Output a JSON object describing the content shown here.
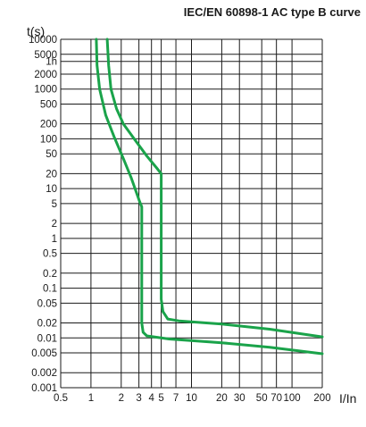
{
  "chart_data": {
    "type": "line",
    "title": "IEC/EN 60898-1 AC type B curve",
    "ylabel": "t(s)",
    "xlabel": "I/In",
    "xscale": "log",
    "yscale": "log",
    "xlim": [
      0.5,
      200
    ],
    "ylim": [
      0.001,
      10000
    ],
    "grid": true,
    "x_ticks": [
      {
        "value": 0.5,
        "label": "0.5"
      },
      {
        "value": 1,
        "label": "1"
      },
      {
        "value": 2,
        "label": "2"
      },
      {
        "value": 3,
        "label": "3"
      },
      {
        "value": 4,
        "label": "4"
      },
      {
        "value": 5,
        "label": "5"
      },
      {
        "value": 7,
        "label": "7"
      },
      {
        "value": 10,
        "label": "10"
      },
      {
        "value": 20,
        "label": "20"
      },
      {
        "value": 30,
        "label": "30"
      },
      {
        "value": 50,
        "label": "50"
      },
      {
        "value": 70,
        "label": "70"
      },
      {
        "value": 100,
        "label": "100"
      },
      {
        "value": 200,
        "label": "200"
      }
    ],
    "y_ticks": [
      {
        "value": 10000,
        "label": "10000"
      },
      {
        "value": 5000,
        "label": "5000"
      },
      {
        "value": 3600,
        "label": "1h"
      },
      {
        "value": 2000,
        "label": "2000"
      },
      {
        "value": 1000,
        "label": "1000"
      },
      {
        "value": 500,
        "label": "500"
      },
      {
        "value": 200,
        "label": "200"
      },
      {
        "value": 100,
        "label": "100"
      },
      {
        "value": 50,
        "label": "50"
      },
      {
        "value": 20,
        "label": "20"
      },
      {
        "value": 10,
        "label": "10"
      },
      {
        "value": 5,
        "label": "5"
      },
      {
        "value": 2,
        "label": "2"
      },
      {
        "value": 1,
        "label": "1"
      },
      {
        "value": 0.5,
        "label": "0.5"
      },
      {
        "value": 0.2,
        "label": "0.2"
      },
      {
        "value": 0.1,
        "label": "0.1"
      },
      {
        "value": 0.05,
        "label": "0.05"
      },
      {
        "value": 0.02,
        "label": "0.02"
      },
      {
        "value": 0.01,
        "label": "0.01"
      },
      {
        "value": 0.005,
        "label": "0.005"
      },
      {
        "value": 0.002,
        "label": "0.002"
      },
      {
        "value": 0.001,
        "label": "0.001"
      }
    ],
    "series": [
      {
        "color": "#1aa34a",
        "points": [
          [
            1.13,
            10000
          ],
          [
            1.15,
            3000
          ],
          [
            1.22,
            1000
          ],
          [
            1.4,
            300
          ],
          [
            1.7,
            110
          ],
          [
            2.1,
            40
          ],
          [
            2.5,
            17
          ],
          [
            3.05,
            5.5
          ],
          [
            3.2,
            4.3
          ],
          [
            3.2,
            0.02
          ],
          [
            3.3,
            0.013
          ],
          [
            3.6,
            0.011
          ],
          [
            6,
            0.0095
          ],
          [
            20,
            0.008
          ],
          [
            60,
            0.0065
          ],
          [
            200,
            0.0048
          ]
        ]
      },
      {
        "color": "#1aa34a",
        "points": [
          [
            1.45,
            10000
          ],
          [
            1.5,
            3000
          ],
          [
            1.58,
            1000
          ],
          [
            1.8,
            400
          ],
          [
            2.1,
            200
          ],
          [
            2.8,
            90
          ],
          [
            3.6,
            45
          ],
          [
            4.5,
            26
          ],
          [
            5,
            20
          ],
          [
            5,
            0.06
          ],
          [
            5.2,
            0.034
          ],
          [
            5.8,
            0.024
          ],
          [
            7.5,
            0.022
          ],
          [
            20,
            0.019
          ],
          [
            60,
            0.015
          ],
          [
            200,
            0.0105
          ]
        ]
      }
    ]
  }
}
